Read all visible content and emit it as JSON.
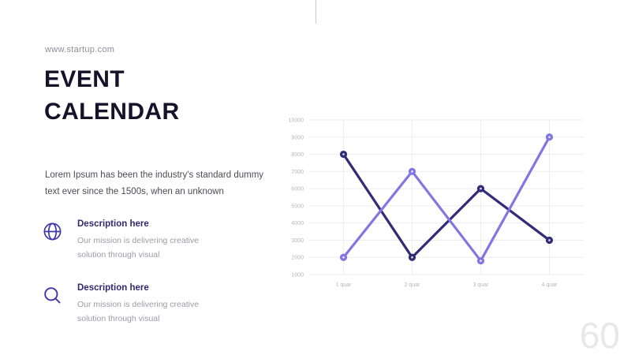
{
  "page": {
    "website": "www.startup.com",
    "title_line1": "EVENT",
    "title_line2": "CALENDAR",
    "body_text": "Lorem Ipsum has been the industry's standard dummy text ever since the 1500s, when an unknown",
    "page_number": "60"
  },
  "features": [
    {
      "icon": "globe-icon",
      "title": "Description here",
      "description": "Our mission is delivering creative solution through visual"
    },
    {
      "icon": "magnifier-icon",
      "title": "Description here",
      "description": "Our mission is delivering creative solution through visual"
    }
  ],
  "colors": {
    "accent": "#3f37a8",
    "heading": "#15122a",
    "muted_text": "#9c9ca8",
    "axis_label": "#b6b6bf",
    "gridline": "#ededf2",
    "page_number": "#e7e7ec"
  },
  "chart_data": {
    "type": "line",
    "title": "",
    "xlabel": "",
    "ylabel": "",
    "categories": [
      "1 quar",
      "2 quar",
      "3 quar",
      "4 quar"
    ],
    "series": [
      {
        "name": "dark-series",
        "color": "#322b76",
        "values": [
          8000,
          2000,
          6000,
          3000
        ]
      },
      {
        "name": "light-series",
        "color": "#8276e3",
        "values": [
          2000,
          7000,
          1800,
          9000
        ]
      }
    ],
    "ylim": [
      1000,
      10000
    ],
    "yticks": [
      1000,
      2000,
      3000,
      4000,
      5000,
      6000,
      7000,
      8000,
      9000,
      10000
    ],
    "grid": true,
    "legend_position": "none"
  }
}
